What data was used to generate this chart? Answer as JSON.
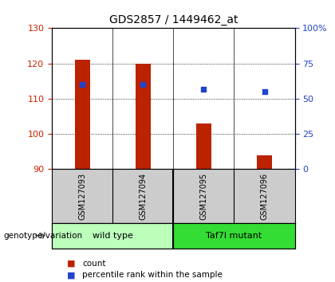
{
  "title": "GDS2857 / 1449462_at",
  "samples": [
    "GSM127093",
    "GSM127094",
    "GSM127095",
    "GSM127096"
  ],
  "bar_values": [
    121,
    120,
    103,
    94
  ],
  "bar_base": 90,
  "percentile_values": [
    60,
    60,
    57,
    55
  ],
  "left_ylim": [
    90,
    130
  ],
  "left_yticks": [
    90,
    100,
    110,
    120,
    130
  ],
  "right_ylim": [
    0,
    100
  ],
  "right_yticks": [
    0,
    25,
    50,
    75,
    100
  ],
  "bar_color": "#bb2200",
  "dot_color": "#2244cc",
  "group_colors": [
    "#bbffbb",
    "#33dd33"
  ],
  "groups": [
    {
      "label": "wild type",
      "samples": [
        0,
        1
      ]
    },
    {
      "label": "Taf7l mutant",
      "samples": [
        2,
        3
      ]
    }
  ],
  "group_label": "genotype/variation",
  "legend_count_label": "count",
  "legend_percentile_label": "percentile rank within the sample",
  "tick_color_left": "#cc2200",
  "tick_color_right": "#2244cc",
  "background_color": "#ffffff",
  "sample_box_color": "#cccccc",
  "bar_width": 0.25
}
